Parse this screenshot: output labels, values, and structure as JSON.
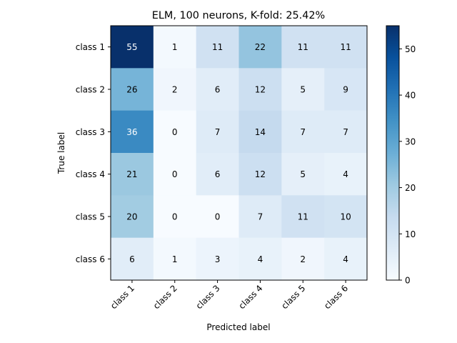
{
  "chart_data": {
    "type": "heatmap",
    "title": "ELM, 100 neurons, K-fold: 25.42%",
    "xlabel": "Predicted label",
    "ylabel": "True label",
    "x_categories": [
      "class 1",
      "class 2",
      "class 3",
      "class 4",
      "class 5",
      "class 6"
    ],
    "y_categories": [
      "class 1",
      "class 2",
      "class 3",
      "class 4",
      "class 5",
      "class 6"
    ],
    "values": [
      [
        55,
        1,
        11,
        22,
        11,
        11
      ],
      [
        26,
        2,
        6,
        12,
        5,
        9
      ],
      [
        36,
        0,
        7,
        14,
        7,
        7
      ],
      [
        21,
        0,
        6,
        12,
        5,
        4
      ],
      [
        20,
        0,
        0,
        7,
        11,
        10
      ],
      [
        6,
        1,
        3,
        4,
        2,
        4
      ]
    ],
    "colorbar": {
      "min": 0,
      "max": 55,
      "ticks": [
        0,
        10,
        20,
        30,
        40,
        50
      ],
      "colormap": "Blues"
    },
    "grid": false
  }
}
